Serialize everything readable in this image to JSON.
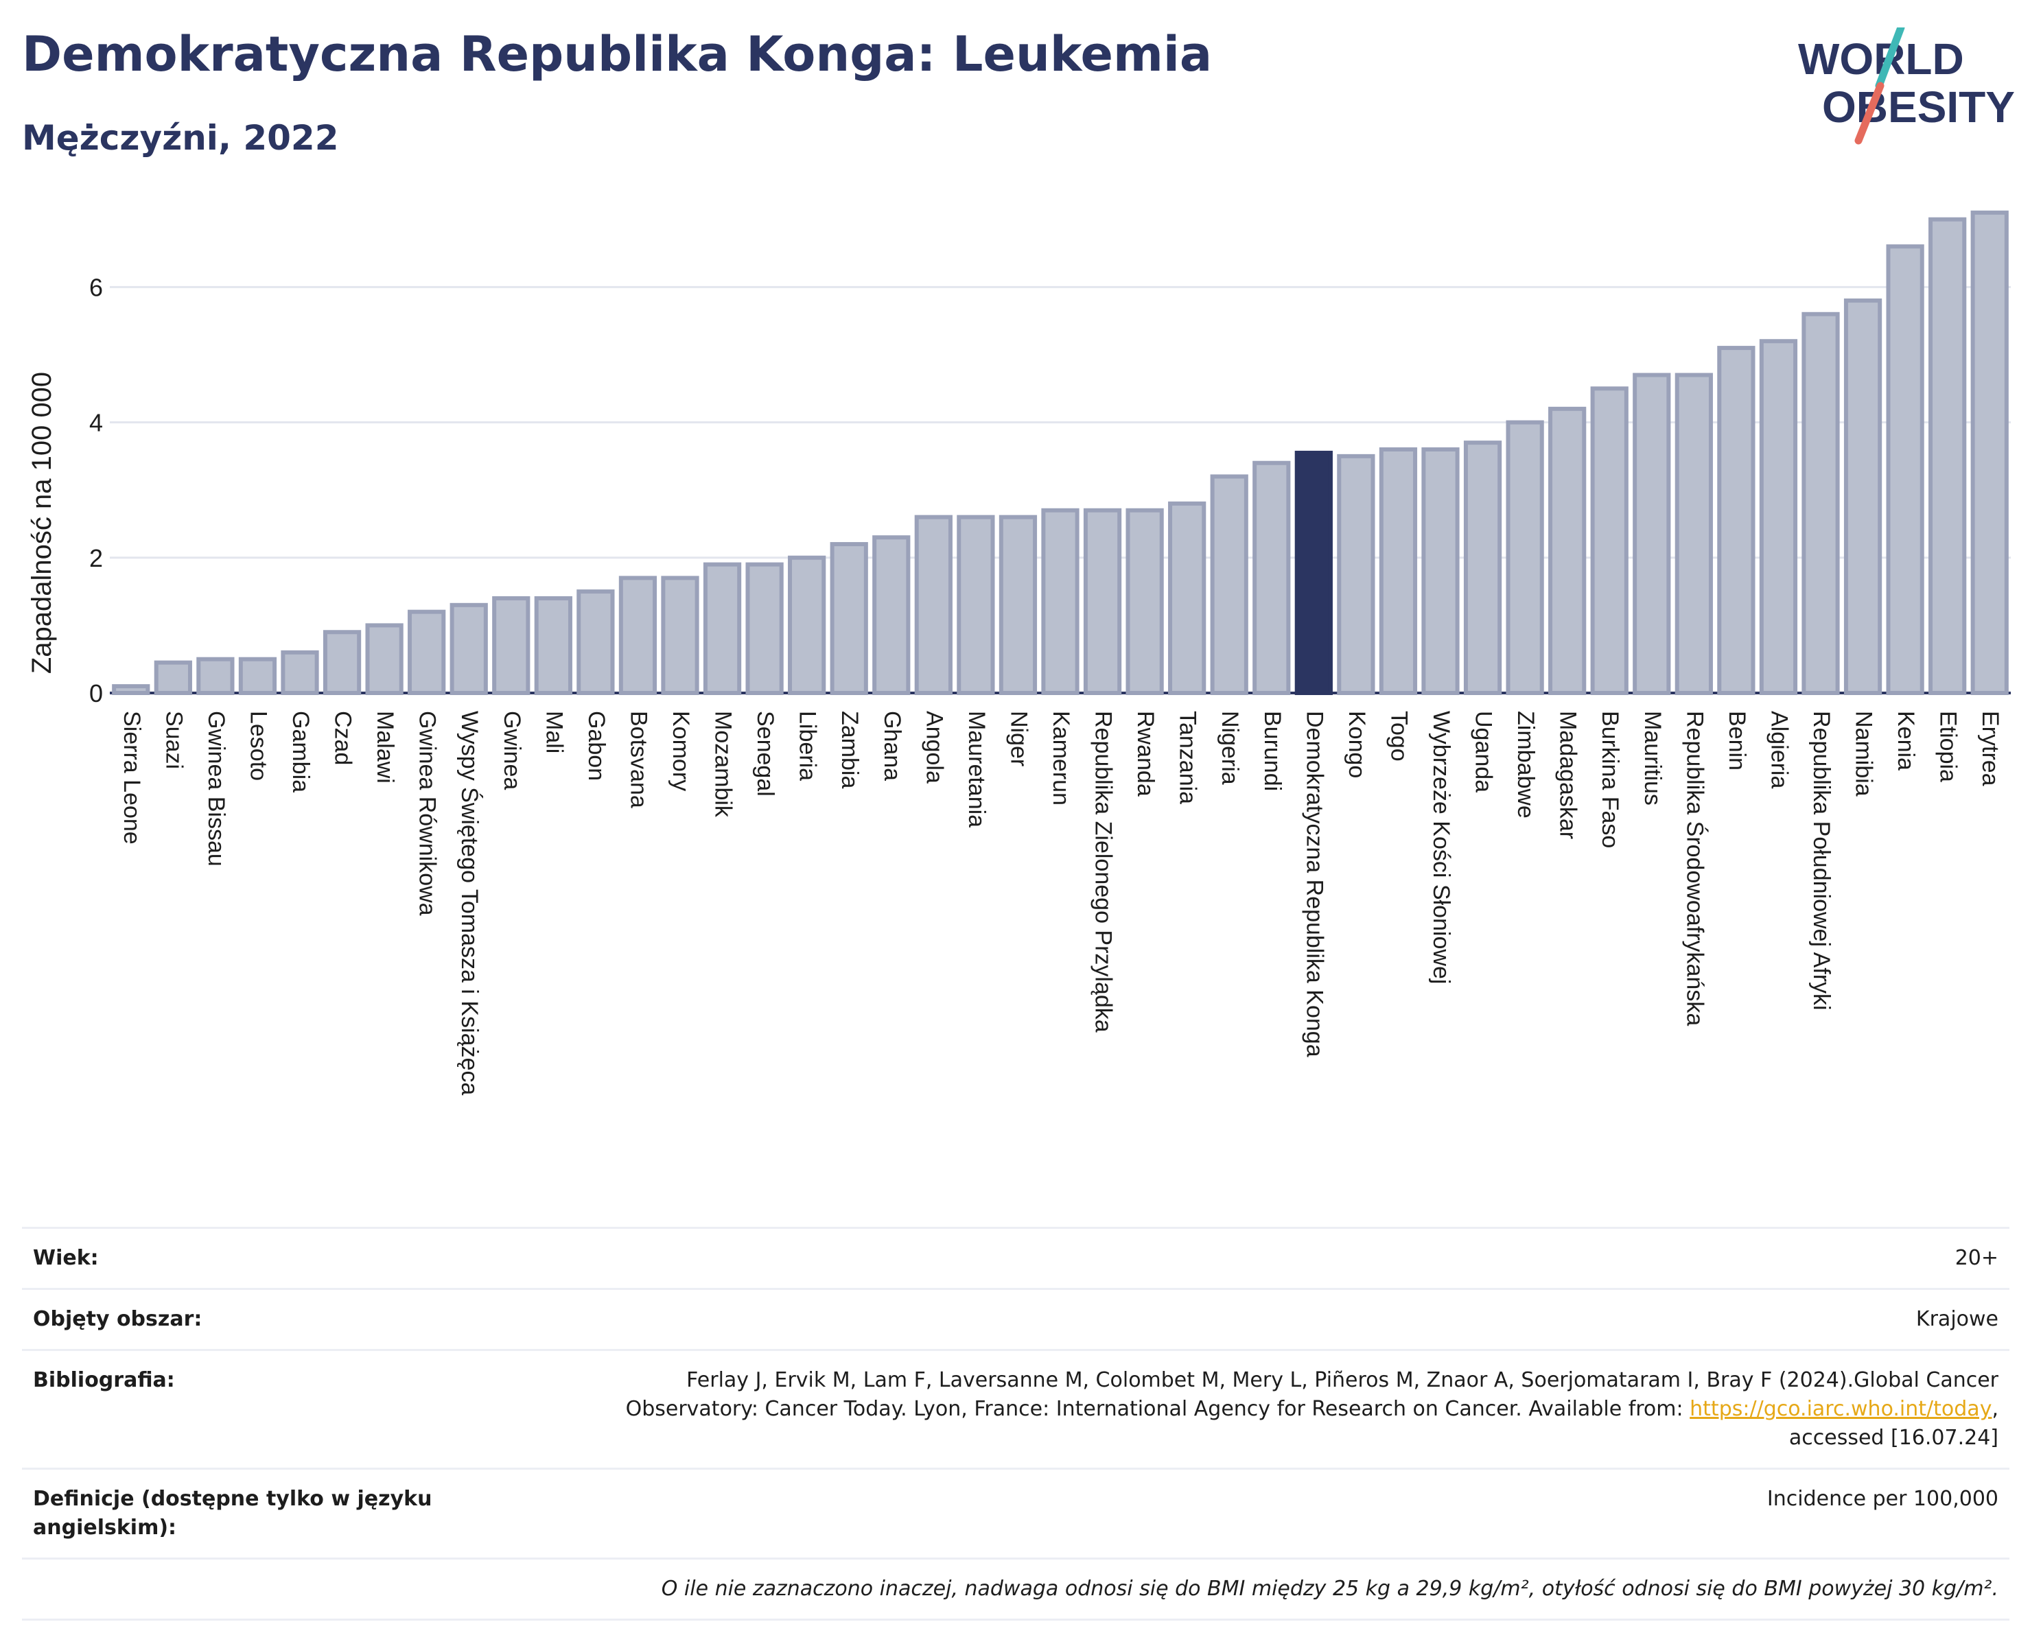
{
  "header": {
    "title": "Demokratyczna Republika Konga: Leukemia",
    "subtitle": "Mężczyźni, 2022"
  },
  "logo": {
    "line1": "WORLD",
    "line2": "OBESITY",
    "icon": "world-obesity-logo"
  },
  "colors": {
    "bar": "#b9bfce",
    "bar_stroke": "#9aa1b9",
    "highlight": "#2b3561",
    "text": "#2b3561"
  },
  "chart_data": {
    "type": "bar",
    "ylabel": "Zapadalność na 100 000",
    "ylim": [
      0,
      7.2
    ],
    "yticks": [
      0,
      2,
      4,
      6
    ],
    "grid": true,
    "highlight": "Demokratyczna Republika Konga",
    "categories": [
      "Sierra Leone",
      "Suazi",
      "Gwinea Bissau",
      "Lesoto",
      "Gambia",
      "Czad",
      "Malawi",
      "Gwinea Równikowa",
      "Wyspy Świętego Tomasza i Książęca",
      "Gwinea",
      "Mali",
      "Gabon",
      "Botsvana",
      "Komory",
      "Mozambik",
      "Senegal",
      "Liberia",
      "Zambia",
      "Ghana",
      "Angola",
      "Mauretania",
      "Niger",
      "Kamerun",
      "Republika Zielonego Przylądka",
      "Rwanda",
      "Tanzania",
      "Nigeria",
      "Burundi",
      "Demokratyczna Republika Konga",
      "Kongo",
      "Togo",
      "Wybrzeże Kości Słoniowej",
      "Uganda",
      "Zimbabwe",
      "Madagaskar",
      "Burkina Faso",
      "Mauritius",
      "Republika Środowoafrykańska",
      "Benin",
      "Algieria",
      "Republika Południowej Afryki",
      "Namibia",
      "Kenia",
      "Etiopia",
      "Erytrea"
    ],
    "values": [
      0.1,
      0.45,
      0.5,
      0.5,
      0.6,
      0.9,
      1.0,
      1.2,
      1.3,
      1.4,
      1.4,
      1.5,
      1.7,
      1.7,
      1.9,
      1.9,
      2.0,
      2.2,
      2.3,
      2.6,
      2.6,
      2.6,
      2.7,
      2.7,
      2.7,
      2.8,
      3.2,
      3.4,
      3.55,
      3.5,
      3.6,
      3.6,
      3.7,
      4.0,
      4.2,
      4.5,
      4.7,
      4.7,
      5.1,
      5.2,
      5.6,
      5.8,
      6.6,
      7.0,
      7.1
    ]
  },
  "meta": {
    "age_label": "Wiek:",
    "age_value": "20+",
    "coverage_label": "Objęty obszar:",
    "coverage_value": "Krajowe",
    "bib_label": "Bibliografia:",
    "bib_text_1": "Ferlay J, Ervik M, Lam F, Laversanne M, Colombet M, Mery L, Piñeros M, Znaor A, Soerjomataram I, Bray F (2024).Global Cancer",
    "bib_text_2": "Observatory: Cancer Today. Lyon, France: International Agency for Research on Cancer. Available from: ",
    "bib_link": "https://gco.iarc.who.int/today",
    "bib_text_3": ",",
    "bib_text_4": "accessed [16.07.24]",
    "def_label": "Definicje (dostępne tylko w języku angielskim):",
    "def_value": "Incidence per 100,000",
    "note": "O ile nie zaznaczono inaczej, nadwaga odnosi się do BMI między 25 kg a 29,9 kg/m², otyłość odnosi się do BMI powyżej 30 kg/m²."
  }
}
